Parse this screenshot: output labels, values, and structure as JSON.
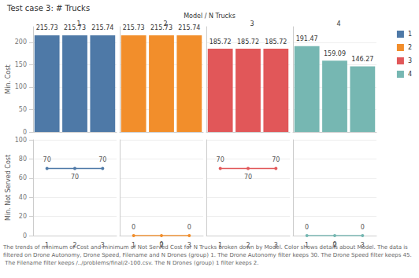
{
  "chart_data": [
    {
      "type": "bar",
      "title": "Test case 3: # Trucks",
      "subtitle": "Model / N Trucks",
      "y_label": "Min. Cost",
      "categories": [
        "1",
        "2",
        "3"
      ],
      "series": [
        {
          "name": "1",
          "color": "#4e79a7",
          "values": [
            215.73,
            215.73,
            215.74
          ]
        },
        {
          "name": "2",
          "color": "#f28e2b",
          "values": [
            215.73,
            215.73,
            215.74
          ]
        },
        {
          "name": "3",
          "color": "#e15759",
          "values": [
            185.72,
            185.72,
            185.72
          ]
        },
        {
          "name": "4",
          "color": "#76b7b2",
          "values": [
            191.47,
            159.09,
            146.27
          ]
        }
      ],
      "ylim": [
        0,
        235
      ],
      "yticks": [
        0,
        50,
        100,
        150,
        200
      ],
      "grid": true,
      "data_labels": true,
      "legend": "right"
    },
    {
      "type": "line",
      "y_label": "Min. Not Served Cost",
      "categories": [
        "1",
        "2",
        "3"
      ],
      "series": [
        {
          "name": "1",
          "color": "#4e79a7",
          "values": [
            70,
            70,
            70
          ]
        },
        {
          "name": "2",
          "color": "#f28e2b",
          "values": [
            0,
            0,
            0
          ]
        },
        {
          "name": "3",
          "color": "#e15759",
          "values": [
            70,
            70,
            70
          ]
        },
        {
          "name": "4",
          "color": "#76b7b2",
          "values": [
            0,
            0,
            0
          ]
        }
      ],
      "ylim": [
        0,
        100
      ],
      "yticks": [
        0,
        20,
        40,
        60,
        80,
        100
      ],
      "grid": true,
      "data_labels": true,
      "marker": "circle",
      "annotations": [
        "The trends of minimum of Cost and minimum of Not Served Cost for N Trucks broken down by Model. Color shows details about Model. The data is filtered on Drone Autonomy, Drone Speed, Filename and N Drones (group) 1. The Drone Autonomy filter keeps 30. The Drone Speed filter keeps 45. The Filename filter keeps /../problems/final/2-100.csv. The N Drones (group) 1 filter keeps 2."
      ]
    }
  ]
}
